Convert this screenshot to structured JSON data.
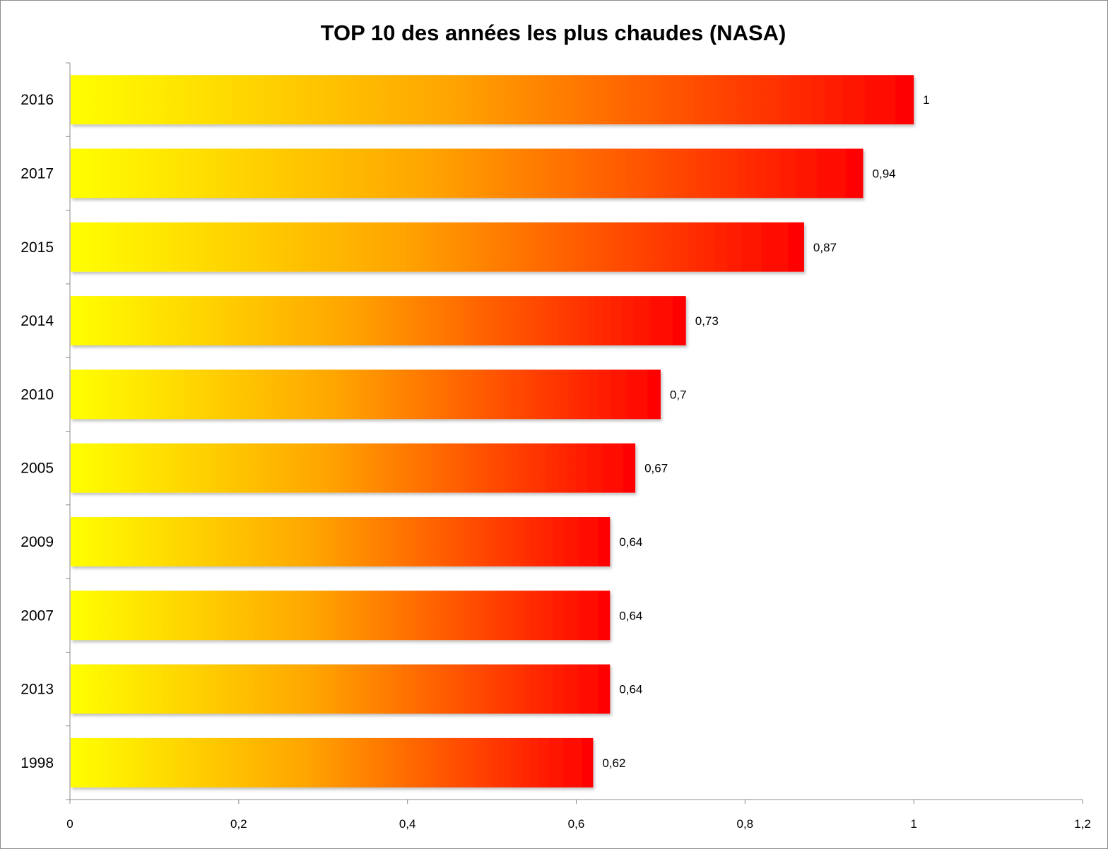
{
  "chart_data": {
    "type": "bar",
    "orientation": "horizontal",
    "title": "TOP 10 des années les plus chaudes (NASA)",
    "categories": [
      "2016",
      "2017",
      "2015",
      "2014",
      "2010",
      "2005",
      "2009",
      "2007",
      "2013",
      "1998"
    ],
    "values": [
      1,
      0.94,
      0.87,
      0.73,
      0.7,
      0.67,
      0.64,
      0.64,
      0.64,
      0.62
    ],
    "value_labels": [
      "1",
      "0,94",
      "0,87",
      "0,73",
      "0,7",
      "0,67",
      "0,64",
      "0,64",
      "0,64",
      "0,62"
    ],
    "xlim": [
      0,
      1.2
    ],
    "x_ticks": [
      0,
      0.2,
      0.4,
      0.6,
      0.8,
      1,
      1.2
    ],
    "x_tick_labels": [
      "0",
      "0,2",
      "0,4",
      "0,6",
      "0,8",
      "1",
      "1,2"
    ],
    "xlabel": "",
    "ylabel": "",
    "grid": false,
    "legend": "none",
    "colors": {
      "gradient_start": "#ffff00",
      "gradient_mid": "#ffa500",
      "gradient_end": "#ff0000",
      "axis": "#8c8c8c"
    }
  }
}
